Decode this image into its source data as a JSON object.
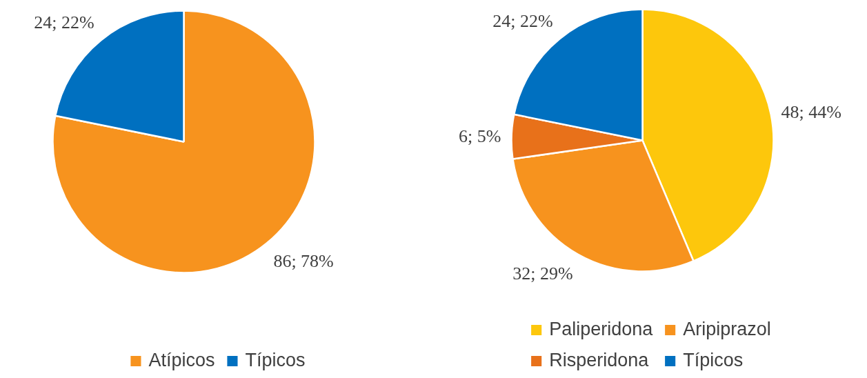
{
  "chart_data": [
    {
      "type": "pie",
      "categories": [
        "Atípicos",
        "Típicos"
      ],
      "values": [
        86,
        24
      ],
      "colors": [
        "#f7931e",
        "#0070c0"
      ],
      "value_labels": [
        "86; 78%",
        "24; 22%"
      ],
      "legend": "bottom"
    },
    {
      "type": "pie",
      "categories": [
        "Paliperidona",
        "Aripiprazol",
        "Risperidona",
        "Típicos"
      ],
      "values": [
        48,
        32,
        6,
        24
      ],
      "colors": [
        "#fdc70c",
        "#f7931e",
        "#e8711a",
        "#0070c0"
      ],
      "value_labels": [
        "48; 44%",
        "32; 29%",
        "6; 5%",
        "24; 22%"
      ],
      "legend": "bottom"
    }
  ]
}
